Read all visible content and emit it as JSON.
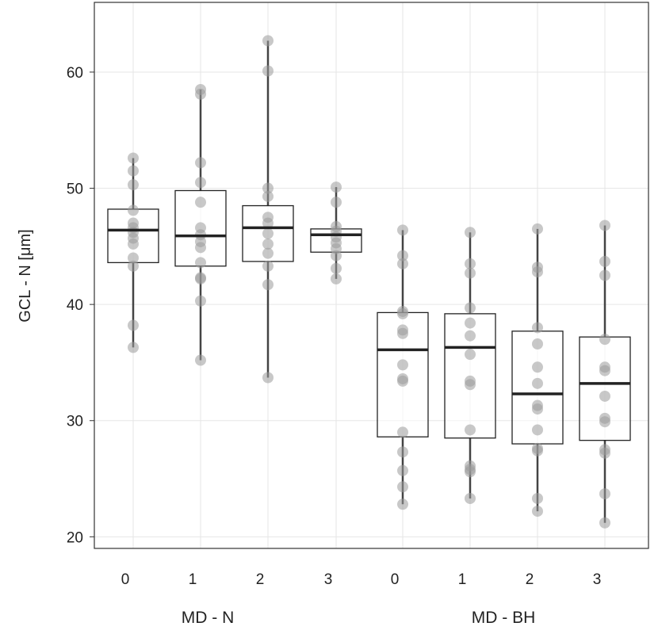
{
  "chart_data": {
    "type": "box",
    "ylabel": "GCL - N [μm]",
    "ylim": [
      19,
      66
    ],
    "yticks": [
      20,
      30,
      40,
      50,
      60
    ],
    "grid": true,
    "groups": [
      {
        "label": "MD - N",
        "categories": [
          "0",
          "1",
          "2",
          "3"
        ]
      },
      {
        "label": "MD - BH",
        "categories": [
          "0",
          "1",
          "2",
          "3"
        ]
      }
    ],
    "boxes": [
      {
        "group": "MD - N",
        "category": "0",
        "median": 46.4,
        "q1": 43.6,
        "q3": 48.2,
        "whisker_low": 36.3,
        "whisker_high": 52.6,
        "points": [
          52.6,
          51.5,
          50.3,
          48.1,
          47.0,
          46.6,
          46.2,
          45.7,
          45.2,
          44.0,
          43.3,
          38.2,
          36.3
        ]
      },
      {
        "group": "MD - N",
        "category": "1",
        "median": 45.9,
        "q1": 43.3,
        "q3": 49.8,
        "whisker_low": 35.2,
        "whisker_high": 58.5,
        "points": [
          58.5,
          58.1,
          52.2,
          50.5,
          48.8,
          46.6,
          46.0,
          45.4,
          44.9,
          43.6,
          42.3,
          42.2,
          40.3,
          35.2
        ]
      },
      {
        "group": "MD - N",
        "category": "2",
        "median": 46.6,
        "q1": 43.7,
        "q3": 48.5,
        "whisker_low": 33.7,
        "whisker_high": 62.7,
        "points": [
          62.7,
          60.1,
          50.0,
          49.3,
          47.5,
          47.0,
          46.1,
          45.2,
          44.4,
          43.3,
          41.7,
          33.7
        ]
      },
      {
        "group": "MD - N",
        "category": "3",
        "median": 46.0,
        "q1": 44.5,
        "q3": 46.5,
        "whisker_low": 42.2,
        "whisker_high": 50.1,
        "points": [
          50.1,
          48.8,
          46.7,
          46.3,
          45.8,
          45.3,
          44.8,
          44.2,
          43.1,
          42.2
        ]
      },
      {
        "group": "MD - BH",
        "category": "0",
        "median": 36.1,
        "q1": 28.6,
        "q3": 39.3,
        "whisker_low": 22.8,
        "whisker_high": 46.4,
        "points": [
          46.4,
          44.2,
          43.5,
          39.4,
          39.2,
          37.8,
          37.5,
          34.8,
          33.6,
          33.4,
          29.0,
          27.3,
          25.7,
          24.3,
          22.8
        ]
      },
      {
        "group": "MD - BH",
        "category": "1",
        "median": 36.3,
        "q1": 28.5,
        "q3": 39.2,
        "whisker_low": 23.3,
        "whisker_high": 46.2,
        "points": [
          46.2,
          43.5,
          42.7,
          39.7,
          38.4,
          37.3,
          35.7,
          33.4,
          33.1,
          29.2,
          26.1,
          25.8,
          25.6,
          23.3
        ]
      },
      {
        "group": "MD - BH",
        "category": "2",
        "median": 32.3,
        "q1": 28.0,
        "q3": 37.7,
        "whisker_low": 22.2,
        "whisker_high": 46.5,
        "points": [
          46.5,
          43.2,
          42.8,
          38.0,
          36.6,
          34.6,
          33.2,
          31.3,
          31.0,
          29.2,
          27.6,
          27.4,
          23.3,
          22.2
        ]
      },
      {
        "group": "MD - BH",
        "category": "3",
        "median": 33.2,
        "q1": 28.3,
        "q3": 37.2,
        "whisker_low": 21.2,
        "whisker_high": 46.8,
        "points": [
          46.8,
          43.7,
          42.5,
          37.0,
          34.6,
          34.3,
          32.1,
          30.2,
          29.9,
          27.5,
          27.2,
          23.7,
          21.2
        ]
      }
    ],
    "colors": {
      "box_edge": "#222222",
      "median": "#222222",
      "whisker": "#444444",
      "points": "#9a9a9a",
      "grid": "#e6e6e6"
    }
  }
}
